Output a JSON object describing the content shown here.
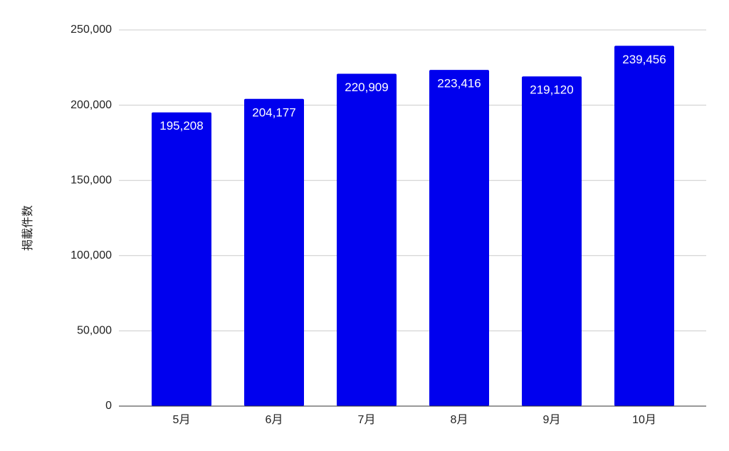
{
  "chart_data": {
    "type": "bar",
    "y_label": "掲載件数",
    "categories": [
      "5月",
      "6月",
      "7月",
      "8月",
      "9月",
      "10月"
    ],
    "values": [
      195208,
      204177,
      220909,
      223416,
      219120,
      239456
    ],
    "value_labels": [
      "195,208",
      "204,177",
      "220,909",
      "223,416",
      "219,120",
      "239,456"
    ],
    "color": "#0000ee",
    "ylim": [
      0,
      250000
    ],
    "yticks": [
      0,
      {
        "value": 50000,
        "label": "50,000"
      },
      {
        "value": 100000,
        "label": "100,000"
      },
      {
        "value": 150000,
        "label": "150,000"
      },
      {
        "value": 200000,
        "label": "200,000"
      },
      {
        "value": 250000,
        "label": "250,000"
      }
    ],
    "grid": true
  }
}
